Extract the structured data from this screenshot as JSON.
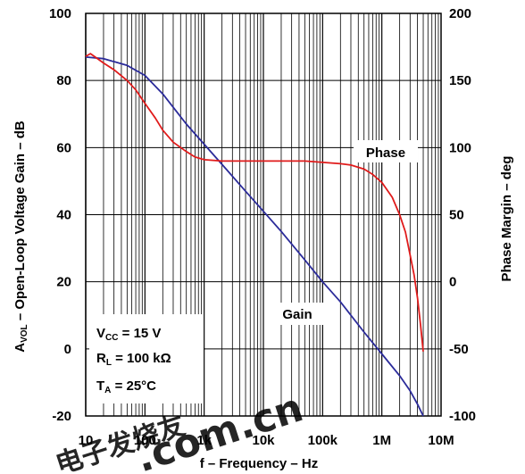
{
  "chart_data": {
    "type": "line",
    "xlabel": "f – Frequency – Hz",
    "ylabel_left": {
      "main": "A",
      "sub": "VOL",
      "rest": " – Open-Loop Voltage Gain – dB"
    },
    "ylabel_right": "Phase Margin – deg",
    "x_scale": "log",
    "xlim": [
      10,
      10000000
    ],
    "ylim_left": [
      -20,
      100
    ],
    "ylim_right": [
      -100,
      200
    ],
    "x_ticks": [
      "10",
      "100",
      "1k",
      "10k",
      "100k",
      "1M",
      "10M"
    ],
    "y_ticks_left": [
      "100",
      "80",
      "60",
      "40",
      "20",
      "0",
      "-20"
    ],
    "y_ticks_right": [
      "200",
      "150",
      "100",
      "50",
      "0",
      "-50",
      "-100"
    ],
    "grid": true,
    "series": [
      {
        "name": "Gain",
        "axis": "left",
        "color": "#2b2b9a",
        "x": [
          10,
          20,
          50,
          100,
          200,
          500,
          1000,
          2000,
          5000,
          10000,
          20000,
          50000,
          100000,
          200000,
          500000,
          1000000,
          2000000,
          3000000,
          4000000,
          5000000
        ],
        "y": [
          87,
          86.5,
          84.5,
          81.5,
          76,
          67,
          61,
          55,
          47,
          41,
          35,
          26.5,
          20,
          14,
          5,
          -1.5,
          -8,
          -12.5,
          -16.5,
          -20
        ]
      },
      {
        "name": "Phase",
        "axis": "right",
        "color": "#e01b1b",
        "x": [
          10,
          12,
          15,
          20,
          30,
          50,
          70,
          100,
          150,
          200,
          300,
          500,
          700,
          1000,
          2000,
          5000,
          10000,
          20000,
          50000,
          100000,
          200000,
          300000,
          500000,
          700000,
          1000000,
          1500000,
          2000000,
          2500000,
          3000000,
          3500000,
          4000000,
          4500000,
          5000000
        ],
        "y": [
          168,
          170,
          167,
          163,
          158,
          150,
          143,
          133,
          122,
          113,
          104,
          97,
          93,
          91,
          90,
          90,
          90,
          90,
          90,
          89,
          88,
          87,
          84,
          80,
          74,
          63,
          50,
          37,
          20,
          5,
          -12,
          -32,
          -52
        ]
      }
    ],
    "annotations": {
      "gain_label": "Gain",
      "phase_label": "Phase",
      "conditions": [
        {
          "main": "V",
          "sub": "CC",
          "rest": " = 15 V"
        },
        {
          "main": "R",
          "sub": "L",
          "rest": " = 100 kΩ"
        },
        {
          "main": "T",
          "sub": "A",
          "rest": " = 25°C"
        }
      ]
    }
  },
  "watermark": {
    "text": "电子发烧友",
    "text2": ".com.cn",
    "colors": [
      "#c8c8c8",
      "#e04040"
    ]
  }
}
